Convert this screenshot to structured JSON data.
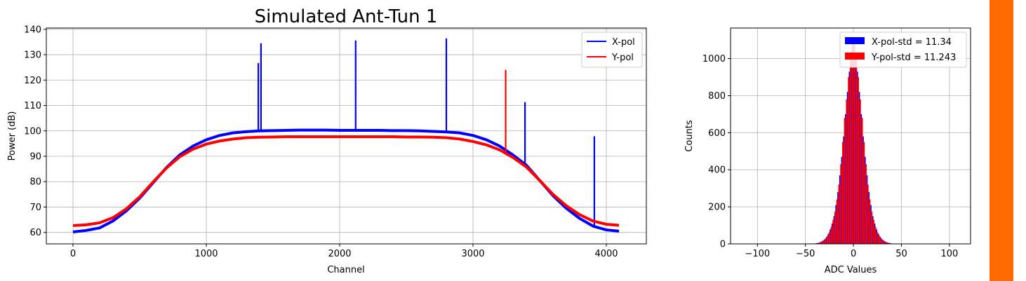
{
  "figure": {
    "accent_bar_color": "#FF6A00"
  },
  "chart_data": [
    {
      "type": "line",
      "title": "Simulated Ant-Tun 1",
      "xlabel": "Channel",
      "ylabel": "Power (dB)",
      "xlim": [
        -200,
        4300
      ],
      "ylim": [
        55.5,
        140.5
      ],
      "xticks": [
        0,
        1000,
        2000,
        3000,
        4000
      ],
      "xtick_labels": [
        "0",
        "1000",
        "2000",
        "3000",
        "4000"
      ],
      "yticks": [
        60,
        70,
        80,
        90,
        100,
        110,
        120,
        130,
        140
      ],
      "ytick_labels": [
        "60",
        "70",
        "80",
        "90",
        "100",
        "110",
        "120",
        "130",
        "140"
      ],
      "grid": true,
      "legend_position": "upper right",
      "series": [
        {
          "name": "X-pol",
          "color": "#0000FF",
          "x": [
            0,
            100,
            200,
            300,
            400,
            500,
            600,
            700,
            800,
            900,
            1000,
            1100,
            1200,
            1300,
            1400,
            1500,
            1600,
            1700,
            1800,
            1900,
            2000,
            2100,
            2200,
            2300,
            2400,
            2500,
            2600,
            2700,
            2800,
            2900,
            3000,
            3100,
            3200,
            3300,
            3400,
            3500,
            3600,
            3700,
            3800,
            3900,
            4000,
            4095
          ],
          "values": [
            60.2,
            60.8,
            61.8,
            64.5,
            68.5,
            73.5,
            79.5,
            85.5,
            90.5,
            94.0,
            96.5,
            98.2,
            99.2,
            99.7,
            100.0,
            100.1,
            100.2,
            100.3,
            100.3,
            100.3,
            100.2,
            100.2,
            100.2,
            100.2,
            100.1,
            100.1,
            100.0,
            99.8,
            99.6,
            99.2,
            98.2,
            96.5,
            94.0,
            90.5,
            86.5,
            80.5,
            74.5,
            69.5,
            65.5,
            62.5,
            61.0,
            60.5
          ],
          "spikes": [
            {
              "x": 1390,
              "value": 126.7
            },
            {
              "x": 1410,
              "value": 134.5
            },
            {
              "x": 2120,
              "value": 135.6
            },
            {
              "x": 2800,
              "value": 136.4
            },
            {
              "x": 3390,
              "value": 111.3
            },
            {
              "x": 3910,
              "value": 97.9
            }
          ]
        },
        {
          "name": "Y-pol",
          "color": "#FF0000",
          "x": [
            0,
            100,
            200,
            300,
            400,
            500,
            600,
            700,
            800,
            900,
            1000,
            1100,
            1200,
            1300,
            1400,
            1500,
            1600,
            1700,
            1800,
            1900,
            2000,
            2100,
            2200,
            2300,
            2400,
            2500,
            2600,
            2700,
            2800,
            2900,
            3000,
            3100,
            3200,
            3300,
            3400,
            3500,
            3600,
            3700,
            3800,
            3900,
            4000,
            4095
          ],
          "values": [
            62.7,
            63.0,
            63.8,
            65.8,
            69.3,
            74.0,
            79.8,
            85.3,
            89.8,
            92.8,
            94.8,
            96.0,
            96.8,
            97.3,
            97.5,
            97.6,
            97.7,
            97.7,
            97.7,
            97.7,
            97.7,
            97.7,
            97.7,
            97.7,
            97.7,
            97.6,
            97.6,
            97.5,
            97.3,
            96.8,
            95.8,
            94.5,
            92.5,
            89.5,
            85.8,
            80.5,
            75.0,
            70.5,
            67.0,
            64.5,
            63.2,
            62.8
          ],
          "spikes": [
            {
              "x": 3245,
              "value": 124.0
            }
          ]
        }
      ]
    },
    {
      "type": "bar",
      "title": "",
      "xlabel": "ADC Values",
      "ylabel": "Counts",
      "xlim": [
        -128,
        122
      ],
      "ylim": [
        0,
        1165
      ],
      "xticks": [
        -100,
        -50,
        0,
        50,
        100
      ],
      "xtick_labels": [
        "−100",
        "−50",
        "0",
        "50",
        "100"
      ],
      "yticks": [
        0,
        200,
        400,
        600,
        800,
        1000
      ],
      "ytick_labels": [
        "0",
        "200",
        "400",
        "600",
        "800",
        "1000"
      ],
      "grid": true,
      "legend_position": "upper right",
      "series": [
        {
          "name": "X-pol-std = 11.34",
          "color": "#0000FF",
          "x": [
            -40,
            -38,
            -36,
            -34,
            -32,
            -30,
            -28,
            -26,
            -24,
            -22,
            -20,
            -18,
            -16,
            -14,
            -12,
            -10,
            -8,
            -6,
            -4,
            -2,
            0,
            2,
            4,
            6,
            8,
            10,
            12,
            14,
            16,
            18,
            20,
            22,
            24,
            26,
            28,
            30,
            32,
            34,
            36,
            38,
            40
          ],
          "values": [
            2,
            4,
            6,
            10,
            16,
            24,
            36,
            54,
            78,
            110,
            150,
            210,
            280,
            370,
            470,
            580,
            700,
            820,
            930,
            1010,
            1060,
            1010,
            930,
            820,
            700,
            580,
            470,
            370,
            280,
            210,
            150,
            110,
            78,
            54,
            36,
            24,
            16,
            10,
            6,
            4,
            2
          ]
        },
        {
          "name": "Y-pol-std = 11.243",
          "color": "#FF0000",
          "x": [
            -39,
            -37,
            -35,
            -33,
            -31,
            -29,
            -27,
            -25,
            -23,
            -21,
            -19,
            -17,
            -15,
            -13,
            -11,
            -9,
            -7,
            -5,
            -3,
            -1,
            1,
            3,
            5,
            7,
            9,
            11,
            13,
            15,
            17,
            19,
            21,
            23,
            25,
            27,
            29,
            31,
            33,
            35,
            37,
            39
          ],
          "values": [
            3,
            5,
            8,
            12,
            19,
            28,
            42,
            62,
            92,
            130,
            175,
            240,
            320,
            430,
            550,
            680,
            780,
            900,
            1000,
            1080,
            1080,
            1000,
            900,
            780,
            680,
            550,
            430,
            320,
            240,
            175,
            130,
            92,
            62,
            42,
            28,
            19,
            12,
            8,
            5,
            3
          ]
        }
      ]
    }
  ]
}
